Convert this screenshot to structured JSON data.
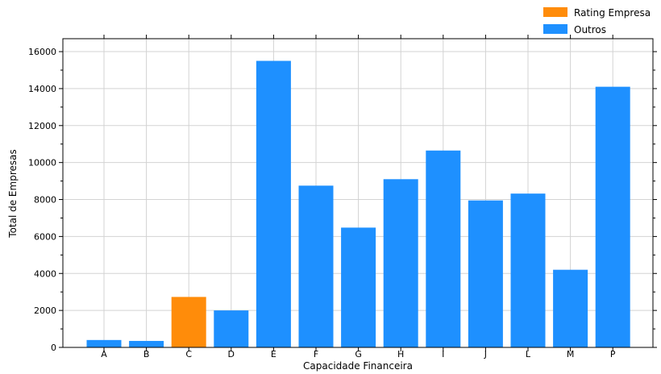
{
  "chart_data": {
    "type": "bar",
    "categories": [
      "A",
      "B",
      "C",
      "D",
      "E",
      "F",
      "G",
      "H",
      "I",
      "J",
      "L",
      "M",
      "P"
    ],
    "values": [
      400,
      350,
      2730,
      2000,
      15500,
      8750,
      6480,
      9100,
      10650,
      7950,
      8320,
      4200,
      14100
    ],
    "highlight_index": 2,
    "xlabel": "Capacidade Financeira",
    "ylabel": "Total de Empresas",
    "ylim": [
      0,
      16700
    ],
    "yticks": [
      0,
      2000,
      4000,
      6000,
      8000,
      10000,
      12000,
      14000,
      16000
    ],
    "grid": true,
    "legend": {
      "placement": "top-right",
      "entries": [
        {
          "label": "Rating Empresa",
          "color": "#ff8c0a"
        },
        {
          "label": "Outros",
          "color": "#1e90ff"
        }
      ]
    },
    "colors": {
      "highlight": "#ff8c0a",
      "default": "#1e90ff",
      "grid": "#d3d3d3"
    }
  }
}
